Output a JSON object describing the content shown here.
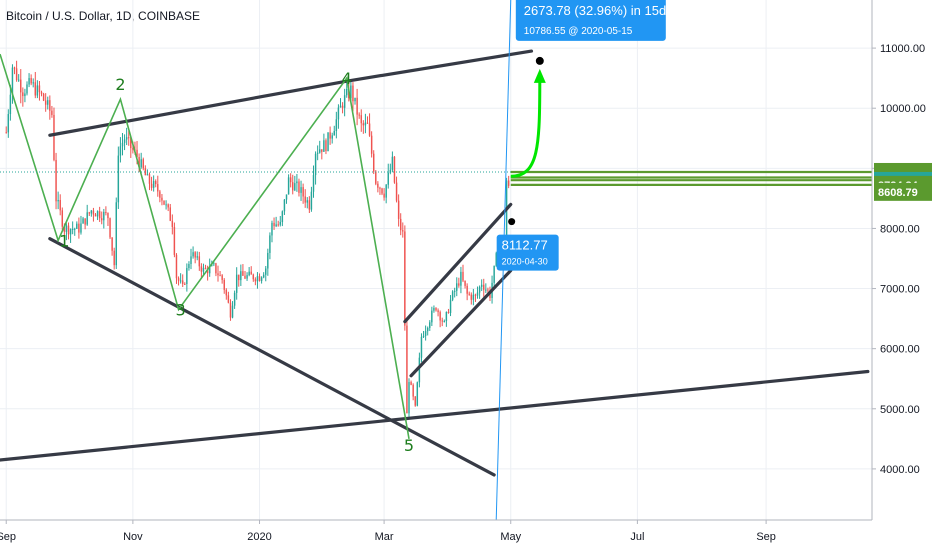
{
  "chart_title": "Bitcoin / U.S. Dollar, 1D, COINBASE",
  "colors": {
    "up": "#26a69a",
    "down": "#ef5350",
    "wave": "#4caf50",
    "trendline": "#363a45",
    "projection": "#00e600",
    "badge": "#2196f3",
    "level_green": "#5b9a2e",
    "level_teal": "#26a69a"
  },
  "chart_data": {
    "type": "candlestick",
    "symbol": "BTCUSD",
    "interval": "1D",
    "exchange": "COINBASE",
    "ylim": [
      3150,
      11800
    ],
    "xlim": [
      "2019-08-29",
      "2020-10-22"
    ],
    "y_ticks": [
      4000,
      5000,
      6000,
      7000,
      8000,
      9000,
      10000,
      11000
    ],
    "y_tick_labels": [
      "4000.00",
      "5000.00",
      "6000.00",
      "7000.00",
      "8000.00",
      "9000.00",
      "10000.00",
      "11000.00"
    ],
    "x_ticks": [
      {
        "date": "2019-09-01",
        "label": "Sep"
      },
      {
        "date": "2019-11-01",
        "label": "Nov"
      },
      {
        "date": "2020-01-01",
        "label": "2020"
      },
      {
        "date": "2020-03-01",
        "label": "Mar"
      },
      {
        "date": "2020-05-01",
        "label": "May"
      },
      {
        "date": "2020-07-01",
        "label": "Jul"
      },
      {
        "date": "2020-09-01",
        "label": "Sep"
      }
    ],
    "price_path": [
      [
        "2019-09-01",
        9600
      ],
      [
        "2019-09-04",
        10700
      ],
      [
        "2019-09-09",
        10300
      ],
      [
        "2019-09-13",
        10400
      ],
      [
        "2019-09-18",
        10200
      ],
      [
        "2019-09-23",
        9900
      ],
      [
        "2019-09-25",
        8500
      ],
      [
        "2019-09-29",
        8000
      ],
      [
        "2019-10-06",
        8000
      ],
      [
        "2019-10-12",
        8300
      ],
      [
        "2019-10-20",
        8200
      ],
      [
        "2019-10-23",
        7400
      ],
      [
        "2019-10-25",
        9300
      ],
      [
        "2019-10-28",
        9500
      ],
      [
        "2019-11-03",
        9200
      ],
      [
        "2019-11-08",
        8800
      ],
      [
        "2019-11-14",
        8600
      ],
      [
        "2019-11-20",
        8100
      ],
      [
        "2019-11-22",
        7200
      ],
      [
        "2019-11-25",
        7000
      ],
      [
        "2019-11-29",
        7600
      ],
      [
        "2019-12-05",
        7300
      ],
      [
        "2019-12-10",
        7350
      ],
      [
        "2019-12-14",
        7150
      ],
      [
        "2019-12-18",
        6600
      ],
      [
        "2019-12-21",
        7200
      ],
      [
        "2019-12-26",
        7200
      ],
      [
        "2020-01-01",
        7200
      ],
      [
        "2020-01-04",
        7350
      ],
      [
        "2020-01-07",
        8100
      ],
      [
        "2020-01-11",
        8050
      ],
      [
        "2020-01-15",
        8800
      ],
      [
        "2020-01-20",
        8650
      ],
      [
        "2020-01-25",
        8400
      ],
      [
        "2020-01-28",
        9300
      ],
      [
        "2020-02-02",
        9400
      ],
      [
        "2020-02-07",
        9800
      ],
      [
        "2020-02-10",
        10100
      ],
      [
        "2020-02-14",
        10300
      ],
      [
        "2020-02-19",
        9700
      ],
      [
        "2020-02-22",
        9700
      ],
      [
        "2020-02-26",
        8800
      ],
      [
        "2020-03-01",
        8600
      ],
      [
        "2020-03-05",
        9100
      ],
      [
        "2020-03-08",
        8100
      ],
      [
        "2020-03-10",
        7900
      ],
      [
        "2020-03-12",
        4900
      ],
      [
        "2020-03-13",
        5500
      ],
      [
        "2020-03-16",
        5000
      ],
      [
        "2020-03-19",
        6200
      ],
      [
        "2020-03-23",
        6500
      ],
      [
        "2020-03-26",
        6700
      ],
      [
        "2020-03-30",
        6400
      ],
      [
        "2020-04-02",
        6800
      ],
      [
        "2020-04-07",
        7200
      ],
      [
        "2020-04-10",
        6900
      ],
      [
        "2020-04-14",
        6850
      ],
      [
        "2020-04-17",
        7100
      ],
      [
        "2020-04-21",
        6900
      ],
      [
        "2020-04-24",
        7500
      ],
      [
        "2020-04-28",
        7700
      ],
      [
        "2020-04-29",
        8800
      ],
      [
        "2020-04-30",
        8650
      ]
    ],
    "wave_labels": [
      {
        "label": "1",
        "date": "2019-09-29",
        "price": 7700
      },
      {
        "label": "2",
        "date": "2019-10-26",
        "price": 10300
      },
      {
        "label": "3",
        "date": "2019-11-24",
        "price": 6550
      },
      {
        "label": "4",
        "date": "2020-02-12",
        "price": 10400
      },
      {
        "label": "5",
        "date": "2020-03-13",
        "price": 4300
      }
    ],
    "wave_path": [
      [
        "2019-08-29",
        10900
      ],
      [
        "2019-09-26",
        7800
      ],
      [
        "2019-10-26",
        10150
      ],
      [
        "2019-11-23",
        6650
      ],
      [
        "2020-02-12",
        10500
      ],
      [
        "2020-03-13",
        4500
      ]
    ],
    "trendlines": [
      {
        "name": "upper wedge",
        "from": [
          "2019-09-22",
          9550
        ],
        "to": [
          "2020-02-12",
          10450
        ]
      },
      {
        "name": "upper wedge extension",
        "from": [
          "2020-02-12",
          10450
        ],
        "to": [
          "2020-05-11",
          10950
        ]
      },
      {
        "name": "lower wedge",
        "from": [
          "2019-09-22",
          7830
        ],
        "to": [
          "2020-04-23",
          3900
        ]
      },
      {
        "name": "long-term support",
        "from": [
          "2019-08-24",
          4130
        ],
        "to": [
          "2020-10-20",
          5620
        ]
      },
      {
        "name": "channel top",
        "from": [
          "2020-03-11",
          6450
        ],
        "to": [
          "2020-05-01",
          8400
        ]
      },
      {
        "name": "channel bottom",
        "from": [
          "2020-03-14",
          5550
        ],
        "to": [
          "2020-05-01",
          7300
        ]
      }
    ],
    "price_levels": [
      8939.25,
      8847.53,
      8724.34,
      8608.79
    ],
    "measure": {
      "start": {
        "date": "2020-04-30",
        "price": 8112.77,
        "label": "8112.77",
        "date_label": "2020-04-30"
      },
      "end": {
        "date": "2020-05-15",
        "price": 10786.55,
        "label": "10786.55",
        "date_label": "2020-05-15"
      },
      "change_label": "2673.78 (32.96%) in 15d"
    },
    "vertical_projection": {
      "from": [
        "2020-04-24",
        3150
      ],
      "to": [
        "2020-05-01",
        11800
      ]
    },
    "current_price_label": "8939.25",
    "countdown_label": "22:45:38",
    "scale_labels": [
      {
        "text": "8939.25",
        "price": 8939.25,
        "style": "level"
      },
      {
        "text": "8847.53",
        "price": 8847.53,
        "style": "level"
      },
      {
        "text": "22:45:38",
        "price": 8790,
        "style": "countdown"
      },
      {
        "text": "8724.34",
        "price": 8724.34,
        "style": "level"
      },
      {
        "text": "8608.79",
        "price": 8608.79,
        "style": "level"
      }
    ]
  }
}
